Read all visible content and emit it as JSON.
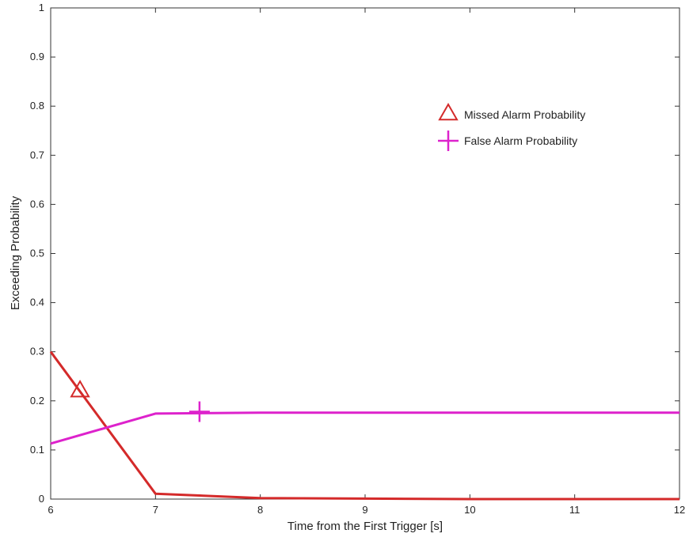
{
  "chart_data": {
    "type": "line",
    "title": "",
    "xlabel": "Time from the First Trigger [s]",
    "ylabel": "Exceeding Probability",
    "xlim": [
      6,
      12
    ],
    "ylim": [
      0,
      1
    ],
    "xticks": [
      6,
      7,
      8,
      9,
      10,
      11,
      12
    ],
    "yticks": [
      0,
      0.1,
      0.2,
      0.3,
      0.4,
      0.5,
      0.6,
      0.7,
      0.8,
      0.9,
      1
    ],
    "ytick_labels": [
      "0",
      "0.1",
      "0.2",
      "0.3",
      "0.4",
      "0.5",
      "0.6",
      "0.7",
      "0.8",
      "0.9",
      "1"
    ],
    "grid": false,
    "legend_position": "top-right",
    "series": [
      {
        "name": "Missed Alarm Probability",
        "color": "#d42a2a",
        "marker": "triangle",
        "x": [
          6,
          7,
          8,
          9,
          10,
          11,
          12
        ],
        "y": [
          0.3,
          0.011,
          0.002,
          0.001,
          0.0,
          0.0,
          0.0
        ],
        "marker_point": [
          6.28,
          0.222
        ]
      },
      {
        "name": "False Alarm Probability",
        "color": "#dd22cc",
        "marker": "plus",
        "x": [
          6,
          7,
          8,
          9,
          10,
          11,
          12
        ],
        "y": [
          0.113,
          0.174,
          0.176,
          0.176,
          0.176,
          0.176,
          0.176
        ],
        "marker_point": [
          7.42,
          0.178
        ]
      }
    ]
  }
}
